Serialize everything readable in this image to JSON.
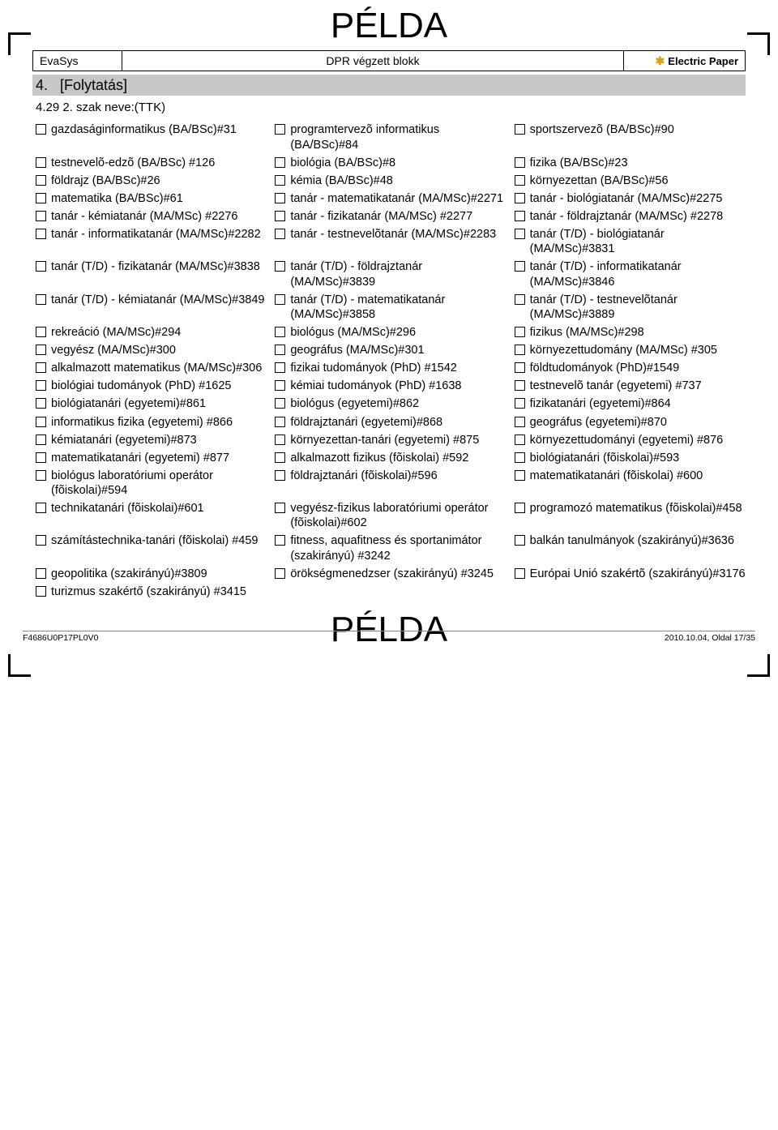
{
  "watermark": "PÉLDA",
  "header": {
    "left": "EvaSys",
    "mid": "DPR végzett blokk",
    "right_brand": "Electric Paper"
  },
  "section": {
    "num": "4.",
    "label": "[Folytatás]"
  },
  "question": {
    "num": "4.29",
    "label": "2. szak neve:(TTK)"
  },
  "rows": [
    [
      "gazdaságinformatikus (BA/BSc)#31",
      "programtervezõ informatikus (BA/BSc)#84",
      "sportszervezõ (BA/BSc)#90"
    ],
    [
      "testnevelõ-edzõ (BA/BSc) #126",
      "biológia (BA/BSc)#8",
      "fizika (BA/BSc)#23"
    ],
    [
      "földrajz (BA/BSc)#26",
      "kémia (BA/BSc)#48",
      "környezettan (BA/BSc)#56"
    ],
    [
      "matematika (BA/BSc)#61",
      "tanár - matematikatanár (MA/MSc)#2271",
      "tanár - biológiatanár (MA/MSc)#2275"
    ],
    [
      "tanár - kémiatanár (MA/MSc) #2276",
      "tanár - fizikatanár (MA/MSc) #2277",
      "tanár - földrajztanár (MA/MSc) #2278"
    ],
    [
      "tanár - informatikatanár (MA/MSc)#2282",
      "tanár - testnevelõtanár (MA/MSc)#2283",
      "tanár (T/D) - biológiatanár (MA/MSc)#3831"
    ],
    [
      "tanár (T/D) - fizikatanár (MA/MSc)#3838",
      "tanár (T/D) - földrajztanár (MA/MSc)#3839",
      "tanár (T/D) - informatikatanár (MA/MSc)#3846"
    ],
    [
      "tanár (T/D) - kémiatanár (MA/MSc)#3849",
      "tanár (T/D) - matematikatanár (MA/MSc)#3858",
      "tanár (T/D) - testnevelõtanár (MA/MSc)#3889"
    ],
    [
      "rekreáció (MA/MSc)#294",
      "biológus (MA/MSc)#296",
      "fizikus (MA/MSc)#298"
    ],
    [
      "vegyész (MA/MSc)#300",
      "geográfus (MA/MSc)#301",
      "környezettudomány (MA/MSc) #305"
    ],
    [
      "alkalmazott matematikus (MA/MSc)#306",
      "fizikai tudományok (PhD) #1542",
      "földtudományok (PhD)#1549"
    ],
    [
      "biológiai tudományok (PhD) #1625",
      "kémiai tudományok (PhD) #1638",
      "testnevelõ tanár (egyetemi) #737"
    ],
    [
      "biológiatanári (egyetemi)#861",
      "biológus (egyetemi)#862",
      "fizikatanári (egyetemi)#864"
    ],
    [
      "informatikus fizika (egyetemi) #866",
      "földrajztanári (egyetemi)#868",
      "geográfus (egyetemi)#870"
    ],
    [
      "kémiatanári (egyetemi)#873",
      "környezettan-tanári (egyetemi) #875",
      "környezettudományi (egyetemi) #876"
    ],
    [
      "matematikatanári (egyetemi) #877",
      "alkalmazott fizikus (fõiskolai) #592",
      "biológiatanári (fõiskolai)#593"
    ],
    [
      "biológus laboratóriumi operátor (fõiskolai)#594",
      "földrajztanári (fõiskolai)#596",
      "matematikatanári (fõiskolai) #600"
    ],
    [
      "technikatanári (fõiskolai)#601",
      "vegyész-fizikus laboratóriumi operátor (fõiskolai)#602",
      "programozó matematikus (fõiskolai)#458"
    ],
    [
      "számítástechnika-tanári (fõiskolai) #459",
      "fitness, aquafitness és sportanimátor  (szakirányú) #3242",
      "balkán tanulmányok (szakirányú)#3636"
    ],
    [
      "geopolitika (szakirányú)#3809",
      "örökségmenedzser (szakirányú) #3245",
      "Európai Unió szakértõ (szakirányú)#3176"
    ],
    [
      "turizmus szakértő (szakirányú) #3415",
      "",
      ""
    ]
  ],
  "footer": {
    "left": "F4686U0P17PL0V0",
    "right": "2010.10.04, Oldal 17/35"
  }
}
